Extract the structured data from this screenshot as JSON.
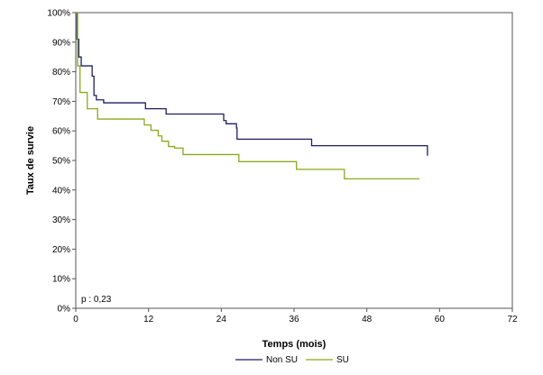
{
  "chart_data": {
    "type": "line",
    "step": true,
    "xlabel": "Temps (mois)",
    "ylabel": "Taux de survie",
    "xlim": [
      0,
      72
    ],
    "ylim": [
      0,
      100
    ],
    "xticks": [
      0,
      12,
      24,
      36,
      48,
      60,
      72
    ],
    "yticks": [
      0,
      10,
      20,
      30,
      40,
      50,
      60,
      70,
      80,
      90,
      100
    ],
    "yticks_suffix": "%",
    "grid": false,
    "legend_position": "bottom-center",
    "annotation": "p : 0,23",
    "series": [
      {
        "name": "Non SU",
        "color": "#1f1f66",
        "x": [
          0,
          0.2,
          0.5,
          0.9,
          2.7,
          3.0,
          3.4,
          4.6,
          11.5,
          14.9,
          24.4,
          24.8,
          26.5,
          26.6,
          36.2,
          38.9,
          56.7,
          58.0
        ],
        "y": [
          100,
          91,
          85,
          82,
          78.5,
          72,
          70.5,
          69.5,
          67.5,
          65.7,
          63.5,
          62.4,
          61,
          57.2,
          57.2,
          55,
          55,
          51.6
        ]
      },
      {
        "name": "SU",
        "color": "#8aaa1f",
        "x": [
          0,
          0.3,
          0.7,
          1.9,
          3.6,
          11.3,
          12.4,
          13.6,
          14.2,
          15.3,
          16.3,
          17.7,
          26.9,
          32.4,
          36.4,
          43.9,
          44.3,
          56.7
        ],
        "y": [
          100,
          82,
          73,
          67.5,
          64,
          62,
          60.2,
          58.3,
          56.5,
          54.7,
          54.2,
          52,
          49.6,
          49.6,
          47,
          47,
          43.8,
          43.8
        ]
      }
    ]
  }
}
